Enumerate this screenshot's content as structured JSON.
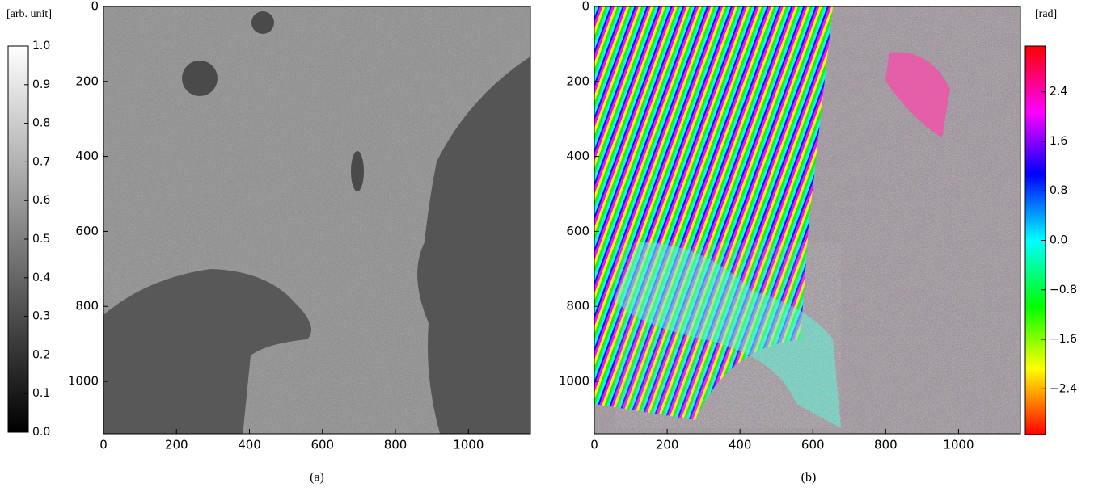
{
  "chart_data": [
    {
      "type": "image",
      "caption": "(a)",
      "xlim": [
        0,
        1170
      ],
      "ylim": [
        1140,
        0
      ],
      "xticks": [
        0,
        200,
        400,
        600,
        800,
        1000
      ],
      "yticks": [
        0,
        200,
        400,
        600,
        800,
        1000
      ],
      "colorbar": {
        "label": "[arb. unit]",
        "colormap": "gray",
        "lim": [
          0,
          1
        ],
        "ticks": [
          {
            "value": 0,
            "label": "0.0"
          },
          0.1,
          0.2,
          0.3,
          0.4,
          0.5,
          0.6,
          0.7,
          0.8,
          0.9,
          {
            "value": 1,
            "label": "1.0"
          }
        ]
      }
    },
    {
      "type": "image",
      "caption": "(b)",
      "xlim": [
        0,
        1170
      ],
      "ylim": [
        1140,
        0
      ],
      "xticks": [
        0,
        200,
        400,
        600,
        800,
        1000
      ],
      "yticks": [
        0,
        200,
        400,
        600,
        800,
        1000
      ],
      "colorbar": {
        "label": "[rad]",
        "colormap": "hsv",
        "lim": [
          -3.14,
          3.14
        ],
        "ticks": [
          {
            "value": -2.4,
            "label": "−2.4"
          },
          {
            "value": -1.6,
            "label": "−1.6"
          },
          {
            "value": -0.8,
            "label": "−0.8"
          },
          {
            "value": 0,
            "label": "0.0"
          },
          0.8,
          1.6,
          2.4
        ]
      }
    }
  ]
}
